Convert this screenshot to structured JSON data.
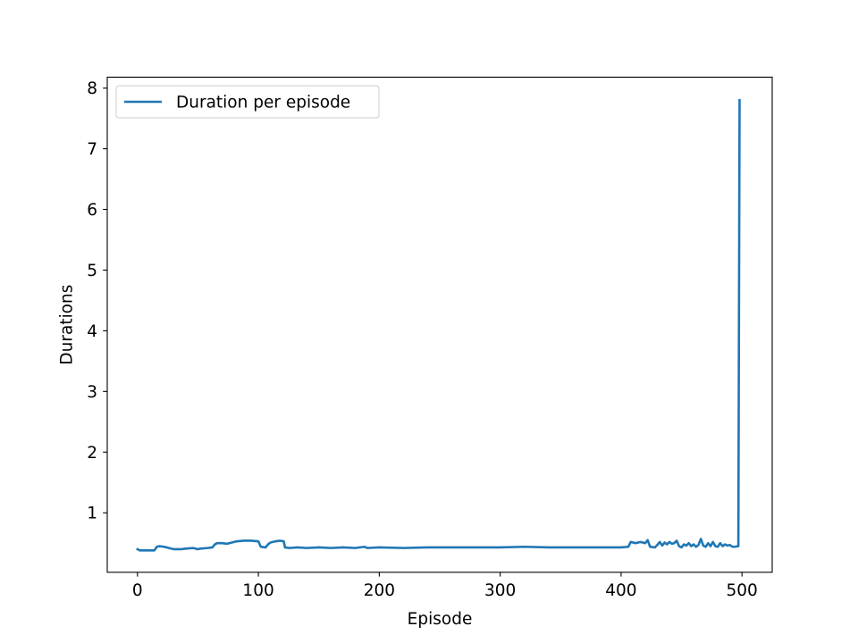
{
  "chart_data": {
    "type": "line",
    "title": "",
    "xlabel": "Episode",
    "ylabel": "Durations",
    "xlim": [
      -25,
      525
    ],
    "ylim": [
      0.02,
      8.18
    ],
    "x_ticks": [
      0,
      100,
      200,
      300,
      400,
      500
    ],
    "y_ticks": [
      1,
      2,
      3,
      4,
      5,
      6,
      7,
      8
    ],
    "grid": false,
    "legend_position": "upper-left",
    "color": "#1f77b4",
    "series": [
      {
        "name": "Duration per episode",
        "points": [
          [
            0,
            0.4
          ],
          [
            2,
            0.38
          ],
          [
            10,
            0.38
          ],
          [
            14,
            0.38
          ],
          [
            16,
            0.44
          ],
          [
            18,
            0.45
          ],
          [
            22,
            0.44
          ],
          [
            26,
            0.42
          ],
          [
            30,
            0.4
          ],
          [
            36,
            0.4
          ],
          [
            40,
            0.41
          ],
          [
            46,
            0.42
          ],
          [
            50,
            0.4
          ],
          [
            52,
            0.41
          ],
          [
            58,
            0.42
          ],
          [
            62,
            0.43
          ],
          [
            64,
            0.48
          ],
          [
            66,
            0.5
          ],
          [
            70,
            0.5
          ],
          [
            74,
            0.49
          ],
          [
            78,
            0.51
          ],
          [
            82,
            0.53
          ],
          [
            88,
            0.54
          ],
          [
            94,
            0.54
          ],
          [
            100,
            0.53
          ],
          [
            102,
            0.44
          ],
          [
            106,
            0.43
          ],
          [
            108,
            0.48
          ],
          [
            110,
            0.51
          ],
          [
            114,
            0.53
          ],
          [
            118,
            0.54
          ],
          [
            121,
            0.53
          ],
          [
            122,
            0.43
          ],
          [
            126,
            0.42
          ],
          [
            132,
            0.43
          ],
          [
            140,
            0.42
          ],
          [
            150,
            0.43
          ],
          [
            160,
            0.42
          ],
          [
            170,
            0.43
          ],
          [
            180,
            0.42
          ],
          [
            188,
            0.44
          ],
          [
            190,
            0.42
          ],
          [
            200,
            0.43
          ],
          [
            220,
            0.42
          ],
          [
            240,
            0.43
          ],
          [
            260,
            0.43
          ],
          [
            280,
            0.43
          ],
          [
            300,
            0.43
          ],
          [
            320,
            0.44
          ],
          [
            340,
            0.43
          ],
          [
            360,
            0.43
          ],
          [
            380,
            0.43
          ],
          [
            400,
            0.43
          ],
          [
            406,
            0.44
          ],
          [
            408,
            0.52
          ],
          [
            412,
            0.5
          ],
          [
            416,
            0.52
          ],
          [
            420,
            0.5
          ],
          [
            422,
            0.55
          ],
          [
            424,
            0.44
          ],
          [
            428,
            0.43
          ],
          [
            430,
            0.47
          ],
          [
            432,
            0.52
          ],
          [
            434,
            0.46
          ],
          [
            436,
            0.51
          ],
          [
            438,
            0.48
          ],
          [
            440,
            0.52
          ],
          [
            442,
            0.49
          ],
          [
            444,
            0.5
          ],
          [
            446,
            0.54
          ],
          [
            448,
            0.45
          ],
          [
            450,
            0.43
          ],
          [
            452,
            0.48
          ],
          [
            454,
            0.46
          ],
          [
            456,
            0.5
          ],
          [
            458,
            0.45
          ],
          [
            460,
            0.48
          ],
          [
            462,
            0.44
          ],
          [
            464,
            0.47
          ],
          [
            466,
            0.57
          ],
          [
            468,
            0.46
          ],
          [
            470,
            0.44
          ],
          [
            472,
            0.5
          ],
          [
            474,
            0.45
          ],
          [
            476,
            0.52
          ],
          [
            478,
            0.45
          ],
          [
            480,
            0.44
          ],
          [
            482,
            0.5
          ],
          [
            484,
            0.45
          ],
          [
            486,
            0.48
          ],
          [
            488,
            0.46
          ],
          [
            490,
            0.47
          ],
          [
            492,
            0.44
          ],
          [
            494,
            0.44
          ],
          [
            497,
            0.45
          ],
          [
            498,
            7.8
          ]
        ]
      }
    ]
  }
}
